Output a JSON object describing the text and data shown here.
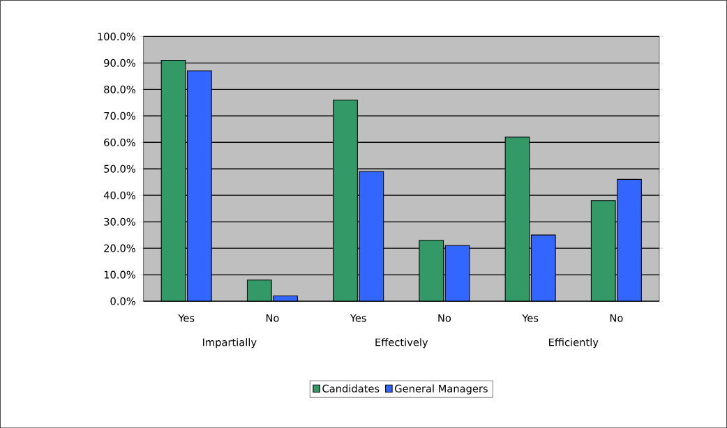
{
  "chart_data": {
    "type": "bar",
    "categories": [
      "Yes",
      "No",
      "Yes",
      "No",
      "Yes",
      "No"
    ],
    "series": [
      {
        "name": "Candidates",
        "color": "#339966",
        "values": [
          91,
          8,
          76,
          23,
          62,
          38
        ]
      },
      {
        "name": "General Managers",
        "color": "#3366ff",
        "values": [
          87,
          2,
          49,
          21,
          25,
          46
        ]
      }
    ],
    "annotations": [
      "Impartially",
      "Effectively",
      "Efficiently"
    ],
    "ylim": [
      0,
      100
    ],
    "yticks": [
      {
        "value": 0,
        "label": "0.0%"
      },
      {
        "value": 10,
        "label": "10.0%"
      },
      {
        "value": 20,
        "label": "20.0%"
      },
      {
        "value": 30,
        "label": "30.0%"
      },
      {
        "value": 40,
        "label": "40.0%"
      },
      {
        "value": 50,
        "label": "50.0%"
      },
      {
        "value": 60,
        "label": "60.0%"
      },
      {
        "value": 70,
        "label": "70.0%"
      },
      {
        "value": 80,
        "label": "80.0%"
      },
      {
        "value": 90,
        "label": "90.0%"
      },
      {
        "value": 100,
        "label": "100.0%"
      }
    ],
    "grid": "y",
    "legend": "bottom"
  }
}
